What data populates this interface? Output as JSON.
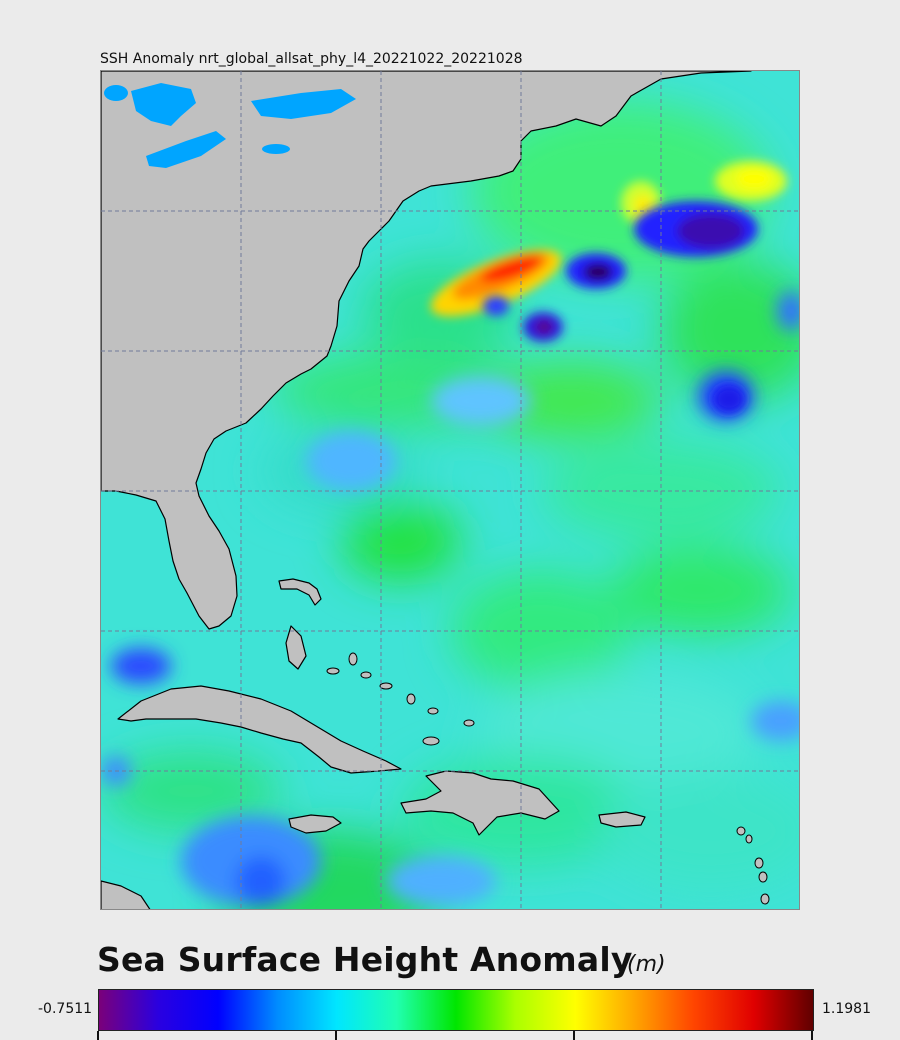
{
  "map": {
    "title": "SSH Anomaly nrt_global_allsat_phy_l4_20221022_20221028",
    "variable": "Sea Surface Height Anomaly",
    "land_color": "#c0c0c0",
    "lake_color": "#00a5ff",
    "grid_style": "dashed"
  },
  "legend": {
    "title": "Sea Surface Height Anomaly",
    "units": "(m)",
    "min_label": "-0.7511",
    "max_label": "1.1981",
    "min_value": -0.7511,
    "max_value": 1.1981,
    "colors": [
      "#7a007a",
      "#2a00e0",
      "#0000ff",
      "#008cff",
      "#00e6ff",
      "#20ffb0",
      "#00e600",
      "#aaff00",
      "#ffff00",
      "#ffa500",
      "#ff4500",
      "#e00000",
      "#600000"
    ]
  }
}
